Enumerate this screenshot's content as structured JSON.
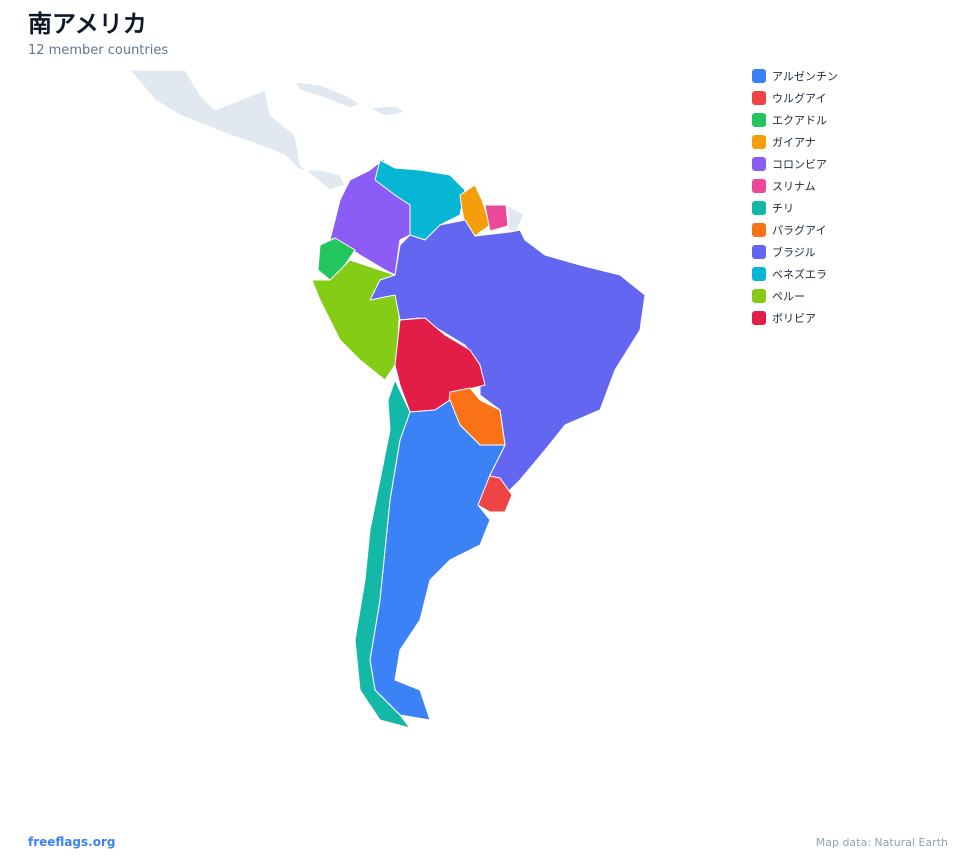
{
  "header": {
    "title": "南アメリカ",
    "subtitle": "12 member countries"
  },
  "legend": [
    {
      "name": "アルゼンチン",
      "color": "#3b82f6"
    },
    {
      "name": "ウルグアイ",
      "color": "#ef4444"
    },
    {
      "name": "エクアドル",
      "color": "#22c55e"
    },
    {
      "name": "ガイアナ",
      "color": "#f59e0b"
    },
    {
      "name": "コロンビア",
      "color": "#8b5cf6"
    },
    {
      "name": "スリナム",
      "color": "#ec4899"
    },
    {
      "name": "チリ",
      "color": "#14b8a6"
    },
    {
      "name": "パラグアイ",
      "color": "#f97316"
    },
    {
      "name": "ブラジル",
      "color": "#6366f1"
    },
    {
      "name": "ベネズエラ",
      "color": "#06b6d4"
    },
    {
      "name": "ペルー",
      "color": "#84cc16"
    },
    {
      "name": "ボリビア",
      "color": "#e11d48"
    }
  ],
  "footer": {
    "site": "freeflags.org",
    "credit": "Map data: Natural Earth"
  }
}
